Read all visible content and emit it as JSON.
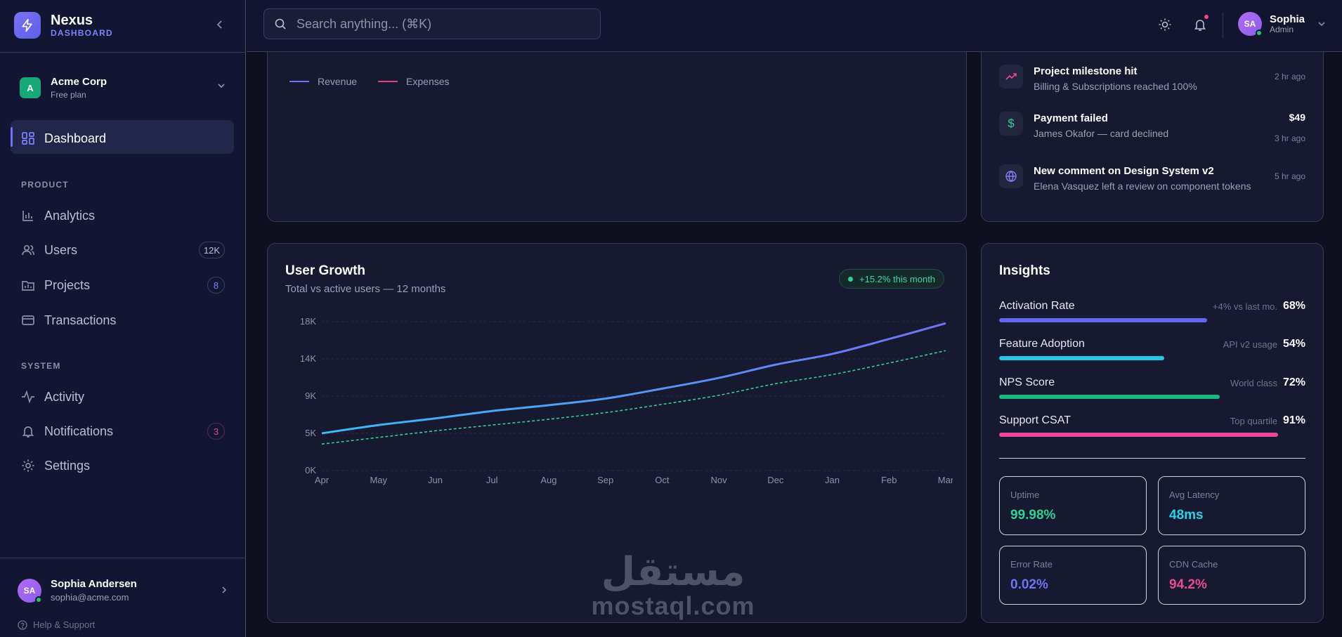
{
  "brand": {
    "name": "Nexus",
    "sub": "DASHBOARD"
  },
  "org": {
    "avatar": "A",
    "name": "Acme Corp",
    "plan": "Free plan"
  },
  "nav": {
    "dashboard": "Dashboard",
    "section_product": "PRODUCT",
    "analytics": "Analytics",
    "users": "Users",
    "users_badge": "12K",
    "projects": "Projects",
    "projects_badge": "8",
    "transactions": "Transactions",
    "section_system": "SYSTEM",
    "activity": "Activity",
    "notifications": "Notifications",
    "notifications_badge": "3",
    "settings": "Settings"
  },
  "sidebar_user": {
    "initials": "SA",
    "name": "Sophia Andersen",
    "email": "sophia@acme.com"
  },
  "help": "Help & Support",
  "search": {
    "placeholder": "Search anything... (⌘K)"
  },
  "top_user": {
    "initials": "SA",
    "name": "Sophia",
    "role": "Admin"
  },
  "legend": {
    "revenue": "Revenue",
    "expenses": "Expenses",
    "revenue_color": "#6d74f5",
    "expenses_color": "#e0457d"
  },
  "activity": [
    {
      "icon": "trending-up-icon",
      "title": "Project milestone hit",
      "desc": "Billing & Subscriptions reached 100%",
      "time": "2 hr ago",
      "amount": ""
    },
    {
      "icon": "dollar-icon",
      "title": "Payment failed",
      "desc": "James Okafor — card declined",
      "time": "3 hr ago",
      "amount": "$49"
    },
    {
      "icon": "globe-icon",
      "title": "New comment on Design System v2",
      "desc": "Elena Vasquez left a review on component tokens",
      "time": "5 hr ago",
      "amount": ""
    }
  ],
  "growth": {
    "title": "User Growth",
    "subtitle": "Total vs active users — 12 months",
    "badge": "+15.2% this month"
  },
  "chart_data": {
    "type": "line",
    "x": [
      "Apr",
      "May",
      "Jun",
      "Jul",
      "Aug",
      "Sep",
      "Oct",
      "Nov",
      "Dec",
      "Jan",
      "Feb",
      "Mar"
    ],
    "y_ticks": [
      "18K",
      "14K",
      "9K",
      "5K",
      "0K"
    ],
    "ylim": [
      0,
      18000
    ],
    "grid": true,
    "series": [
      {
        "values": [
          4500,
          5500,
          6300,
          7200,
          7900,
          8700,
          9900,
          11200,
          12800,
          14100,
          15900,
          17800
        ],
        "color_start": "#38bdf8",
        "color_end": "#7072f2",
        "style": "solid"
      },
      {
        "values": [
          3200,
          4000,
          4800,
          5500,
          6200,
          7000,
          8000,
          9100,
          10500,
          11600,
          13000,
          14500
        ],
        "color": "#2fd193",
        "style": "dashed"
      }
    ]
  },
  "insights": {
    "title": "Insights",
    "rows": [
      {
        "label": "Activation Rate",
        "note": "+4% vs last mo.",
        "value": "68%",
        "fill": 0.68,
        "color": "#6366f1"
      },
      {
        "label": "Feature Adoption",
        "note": "API v2 usage",
        "value": "54%",
        "fill": 0.54,
        "color": "#22c8e6"
      },
      {
        "label": "NPS Score",
        "note": "World class",
        "value": "72%",
        "fill": 0.72,
        "color": "#19b87f"
      },
      {
        "label": "Support CSAT",
        "note": "Top quartile",
        "value": "91%",
        "fill": 0.91,
        "color": "#ec4899"
      }
    ],
    "kpis": [
      {
        "label": "Uptime",
        "value": "99.98%",
        "color": "#2fd193"
      },
      {
        "label": "Avg Latency",
        "value": "48ms",
        "color": "#22d3ee"
      },
      {
        "label": "Error Rate",
        "value": "0.02%",
        "color": "#6d74f5"
      },
      {
        "label": "CDN Cache",
        "value": "94.2%",
        "color": "#ec4899"
      }
    ]
  },
  "watermark": {
    "ar": "مستقل",
    "en": "mostaql.com"
  }
}
